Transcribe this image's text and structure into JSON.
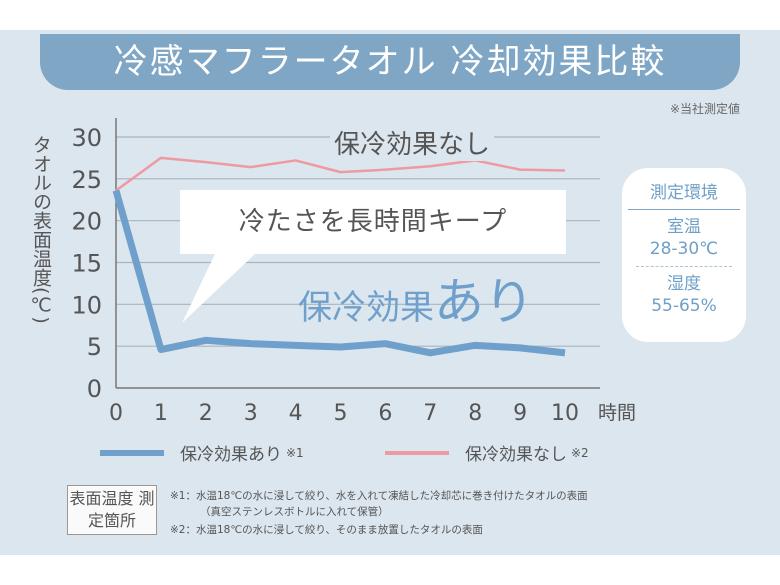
{
  "title": "冷感マフラータオル 冷却効果比較",
  "note": "※当社測定値",
  "callout": "冷たさを長時間キープ",
  "label_ari": {
    "main": "保冷効果",
    "emph": "あり"
  },
  "label_nashi": {
    "main": "保冷効果",
    "emph": "なし"
  },
  "environment": {
    "heading": "測定環境",
    "room_label": "室温",
    "room_value": "28-30℃",
    "humidity_label": "湿度",
    "humidity_value": "55-65%"
  },
  "legend": [
    {
      "name": "保冷効果あり",
      "mark": "※1",
      "color": "#6fa0cc"
    },
    {
      "name": "保冷効果なし",
      "mark": "※2",
      "color": "#ee9aa2"
    }
  ],
  "measurement_location": "表面温度 測定箇所",
  "footnotes": [
    "※1：水温18℃の水に浸して絞り、水を入れて凍結した冷却芯に巻き付けたタオルの表面",
    "（真空ステンレスボトルに入れて保管）",
    "※2：水温18℃の水に浸して絞り、そのまま放置したタオルの表面"
  ],
  "chart_data": {
    "type": "line",
    "title": "冷感マフラータオル 冷却効果比較",
    "xlabel": "時間",
    "ylabel": "タオルの表面温度(℃)",
    "x": [
      0,
      1,
      2,
      3,
      4,
      5,
      6,
      7,
      8,
      9,
      10
    ],
    "xlim": [
      0,
      10
    ],
    "ylim": [
      0,
      30
    ],
    "yticks": [
      0,
      5,
      10,
      15,
      20,
      25,
      30
    ],
    "grid": true,
    "legend_position": "bottom",
    "series": [
      {
        "name": "保冷効果あり",
        "color": "#6fa0cc",
        "values": [
          23.6,
          4.6,
          5.7,
          5.3,
          5.1,
          4.9,
          5.3,
          4.2,
          5.1,
          4.8,
          4.2
        ]
      },
      {
        "name": "保冷効果なし",
        "color": "#ee9aa2",
        "values": [
          23.6,
          27.5,
          27.0,
          26.4,
          27.2,
          25.8,
          26.1,
          26.5,
          27.2,
          26.1,
          26.0
        ]
      }
    ]
  }
}
